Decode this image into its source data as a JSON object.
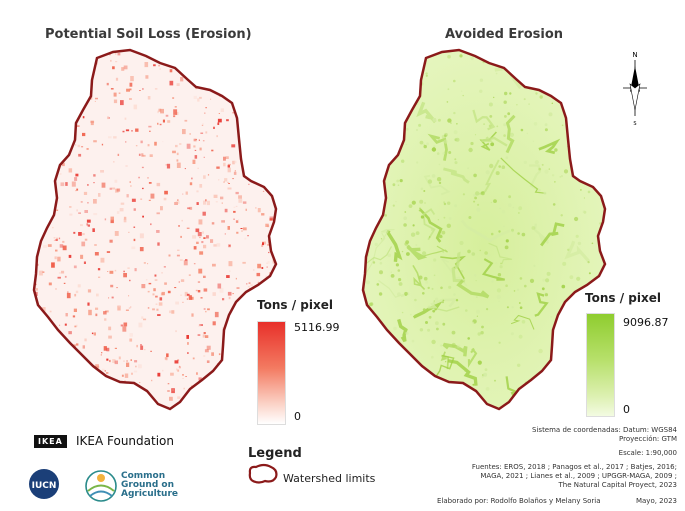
{
  "titles": {
    "left": "Potential Soil Loss (Erosion)",
    "right": "Avoided Erosion"
  },
  "left_legend": {
    "title": "Tons / pixel",
    "max": "5116.99",
    "min": "0",
    "colors": [
      "#e8302a",
      "#ffffff"
    ]
  },
  "right_legend": {
    "title": "Tons / pixel",
    "max": "9096.87",
    "min": "0",
    "colors": [
      "#8fcd2f",
      "#f3fbe2"
    ]
  },
  "north_arrow": {
    "n": "N",
    "s": "S",
    "icon": "north-arrow-icon"
  },
  "legend": {
    "title": "Legend",
    "item": "Watershed limits",
    "boundary_color": "#8b1a1a"
  },
  "logos": {
    "ikea_badge": "IKEA",
    "ikea_name": "IKEA Foundation",
    "iucn": "IUCN",
    "cga_line1": "Common",
    "cga_line2": "Ground on",
    "cga_line3": "Agriculture"
  },
  "metadata": {
    "crs_line1": "Sistema de coordenadas: Datum: WGS84",
    "crs_line2": "Proyección: GTM",
    "scale": "Escale: 1:90,000",
    "sources_line1": "Fuentes: EROS, 2018 ; Panagos et al., 2017 ; Batjes, 2016;",
    "sources_line2": "MAGA, 2021 ; Lianes et al., 2009 ; UPGGR-MAGA, 2009 ;",
    "sources_line3": "The Natural Capital Proyect, 2023",
    "authors": "Elaborado por: Rodolfo Bolaños y Melany Soria",
    "date": "Mayo, 2023"
  }
}
